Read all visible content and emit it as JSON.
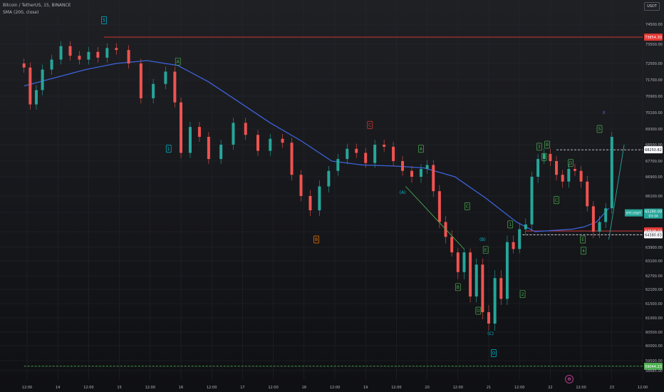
{
  "header": {
    "symbol_line": "Bitcoin / TetherUS, 15, BINANCE",
    "indicator_line": "SMA (200, close)"
  },
  "currency_button": "USDT",
  "colors": {
    "background": "#1a1b1f",
    "grid": "#26282e",
    "up_candle": "#26a69a",
    "down_candle": "#ef5350",
    "sma": "#3d63dd",
    "resistance": "#e53935",
    "support_green": "#4caf50",
    "white_dashed": "#d1d4dc",
    "wave_green": "#4caf50",
    "wave_cyan": "#00bcd4",
    "wave_orange": "#f57c00",
    "wave_red": "#e53935",
    "wave_purple": "#7e57c2",
    "current_price_tag": "#26a69a"
  },
  "chart_data": {
    "type": "line",
    "instrument": "Bitcoin / TetherUS",
    "timeframe": "15",
    "exchange": "BINANCE",
    "x_ticks": [
      "12:00",
      "14",
      "12:00",
      "15",
      "12:00",
      "16",
      "12:00",
      "17",
      "12:00",
      "18",
      "12:00",
      "19",
      "12:00",
      "20",
      "12:00",
      "21",
      "12:00",
      "22",
      "12:00",
      "23",
      "12:00"
    ],
    "y_ticks": [
      74500,
      73500,
      72500,
      71700,
      70900,
      70100,
      69300,
      68500,
      67700,
      66900,
      66100,
      65300,
      64500,
      63900,
      63100,
      62700,
      62100,
      61500,
      61000,
      60500,
      60000,
      59500,
      58685
    ],
    "ylim": [
      58500,
      74900
    ],
    "price_series": {
      "name": "BTCUSDT",
      "x_day": [
        13.0,
        13.1,
        13.2,
        13.3,
        13.45,
        13.6,
        13.75,
        13.9,
        14.05,
        14.2,
        14.35,
        14.5,
        14.7,
        14.9,
        15.1,
        15.3,
        15.45,
        15.55,
        15.7,
        15.85,
        16.0,
        16.2,
        16.4,
        16.6,
        16.8,
        17.0,
        17.2,
        17.35,
        17.5,
        17.65,
        17.8,
        17.95,
        18.1,
        18.25,
        18.4,
        18.55,
        18.7,
        18.85,
        19.0,
        19.15,
        19.3,
        19.45,
        19.55,
        19.65,
        19.75,
        19.85,
        19.95,
        20.05,
        20.15,
        20.25,
        20.35,
        20.45,
        20.55,
        20.65,
        20.75,
        20.85,
        20.95,
        21.05,
        21.15,
        21.25,
        21.35,
        21.45,
        21.55,
        21.65,
        21.75,
        21.85,
        21.95,
        22.05,
        22.15,
        22.25,
        22.35,
        22.45,
        22.55
      ],
      "close": [
        72300,
        70500,
        71200,
        72200,
        72700,
        73400,
        72900,
        72700,
        73100,
        72800,
        73300,
        73200,
        72500,
        70800,
        71500,
        72100,
        70600,
        68100,
        69400,
        68900,
        67800,
        68500,
        69600,
        69000,
        68200,
        68800,
        68600,
        67000,
        66100,
        65400,
        66500,
        67200,
        67800,
        68300,
        68100,
        67600,
        68500,
        68400,
        67700,
        67200,
        66900,
        67300,
        67500,
        66300,
        64900,
        64300,
        63600,
        62800,
        63600,
        61800,
        63000,
        61200,
        60800,
        62600,
        61700,
        64100,
        63800,
        64600,
        64800,
        66900,
        67800,
        68050,
        67700,
        67000,
        66700,
        67300,
        67200,
        66700,
        65600,
        64500,
        64900,
        65500,
        68900
      ],
      "wick_extremes": {
        "high": 73854,
        "low": 60800
      }
    },
    "sma_series": {
      "name": "SMA (200, close)",
      "x_day": [
        13.0,
        13.5,
        14.0,
        14.5,
        15.0,
        15.5,
        16.0,
        16.5,
        17.0,
        17.5,
        18.0,
        18.5,
        19.0,
        19.5,
        20.0,
        20.5,
        21.0,
        21.3,
        21.6,
        21.9,
        22.1,
        22.3,
        22.5
      ],
      "values": [
        71400,
        71800,
        72200,
        72500,
        72650,
        72400,
        71600,
        70600,
        69600,
        68700,
        67700,
        67500,
        67450,
        67350,
        66900,
        66000,
        64900,
        64500,
        64550,
        64600,
        64700,
        64900,
        65500
      ]
    },
    "horizontal_lines": [
      {
        "price": 73854.3,
        "label": "73854.30",
        "style": "solid",
        "color": "#e53935",
        "x_start_day": 14.3
      },
      {
        "price": 68250.82,
        "label": "68250.82",
        "style": "dashed",
        "color": "#d1d4dc",
        "x_start_day": 21.65
      },
      {
        "price": 64528.13,
        "label": "64528.13",
        "style": "solid",
        "color": "#e53935",
        "x_start_day": 21.15
      },
      {
        "price": 64380.83,
        "label": "64380.83",
        "style": "dashed",
        "color": "#d1d4dc",
        "x_start_day": 21.1
      },
      {
        "price": 59044.23,
        "label": "59044.23",
        "style": "dashed",
        "color": "#4caf50",
        "x_start_day": 13.0
      }
    ],
    "current_price": {
      "symbol": "BTCUSDT",
      "price": 65280.0,
      "label": "65280.00",
      "countdown": "03:34"
    },
    "trend_lines": [
      {
        "from": [
          19.2,
          66500
        ],
        "to": [
          20.15,
          63800
        ],
        "color": "#4caf50"
      },
      {
        "from": [
          22.5,
          64200
        ],
        "to": [
          22.75,
          68500
        ],
        "color": "#26a69a"
      }
    ],
    "wave_labels": [
      {
        "text": "5",
        "x_day": 14.3,
        "price": 74700,
        "color": "#00bcd4",
        "boxed": true
      },
      {
        "text": "A",
        "x_day": 15.5,
        "price": 72600,
        "color": "#4caf50",
        "boxed": true
      },
      {
        "text": "1",
        "x_day": 15.35,
        "price": 68300,
        "color": "#00bcd4",
        "boxed": true
      },
      {
        "text": "B",
        "x_day": 17.75,
        "price": 64200,
        "color": "#f57c00",
        "boxed": true
      },
      {
        "text": "C",
        "x_day": 18.62,
        "price": 69500,
        "color": "#e53935",
        "boxed": true
      },
      {
        "text": "A",
        "x_day": 19.45,
        "price": 68300,
        "color": "#4caf50",
        "boxed": true
      },
      {
        "text": "(A)",
        "x_day": 19.15,
        "price": 66250,
        "color": "#00bcd4",
        "boxed": false
      },
      {
        "text": "C",
        "x_day": 20.2,
        "price": 65600,
        "color": "#4caf50",
        "boxed": true
      },
      {
        "text": "(B)",
        "x_day": 20.45,
        "price": 64200,
        "color": "#00bcd4",
        "boxed": false
      },
      {
        "text": "E",
        "x_day": 20.5,
        "price": 63750,
        "color": "#4caf50",
        "boxed": true
      },
      {
        "text": "B",
        "x_day": 20.05,
        "price": 62200,
        "color": "#4caf50",
        "boxed": true
      },
      {
        "text": "D",
        "x_day": 20.38,
        "price": 61250,
        "color": "#4caf50",
        "boxed": true
      },
      {
        "text": "(C)",
        "x_day": 20.58,
        "price": 60450,
        "color": "#00bcd4",
        "boxed": false
      },
      {
        "text": "D",
        "x_day": 20.63,
        "price": 59750,
        "color": "#00bcd4",
        "boxed": true
      },
      {
        "text": "1",
        "x_day": 20.9,
        "price": 64800,
        "color": "#4caf50",
        "boxed": true
      },
      {
        "text": "2",
        "x_day": 21.1,
        "price": 61900,
        "color": "#4caf50",
        "boxed": true
      },
      {
        "text": "3",
        "x_day": 21.37,
        "price": 68400,
        "color": "#4caf50",
        "boxed": true
      },
      {
        "text": "B",
        "x_day": 21.5,
        "price": 68500,
        "color": "#4caf50",
        "boxed": true
      },
      {
        "text": "A",
        "x_day": 21.45,
        "price": 67900,
        "color": "#4caf50",
        "boxed": true
      },
      {
        "text": "D",
        "x_day": 21.88,
        "price": 67600,
        "color": "#4caf50",
        "boxed": true
      },
      {
        "text": "C",
        "x_day": 21.65,
        "price": 65900,
        "color": "#4caf50",
        "boxed": true
      },
      {
        "text": "E",
        "x_day": 22.08,
        "price": 64200,
        "color": "#4caf50",
        "boxed": true
      },
      {
        "text": "4",
        "x_day": 22.09,
        "price": 63700,
        "color": "#4caf50",
        "boxed": true
      },
      {
        "text": "5",
        "x_day": 22.35,
        "price": 69300,
        "color": "#4caf50",
        "boxed": true
      },
      {
        "text": "X",
        "x_day": 22.42,
        "price": 70100,
        "color": "#7e57c2",
        "boxed": false
      }
    ]
  }
}
